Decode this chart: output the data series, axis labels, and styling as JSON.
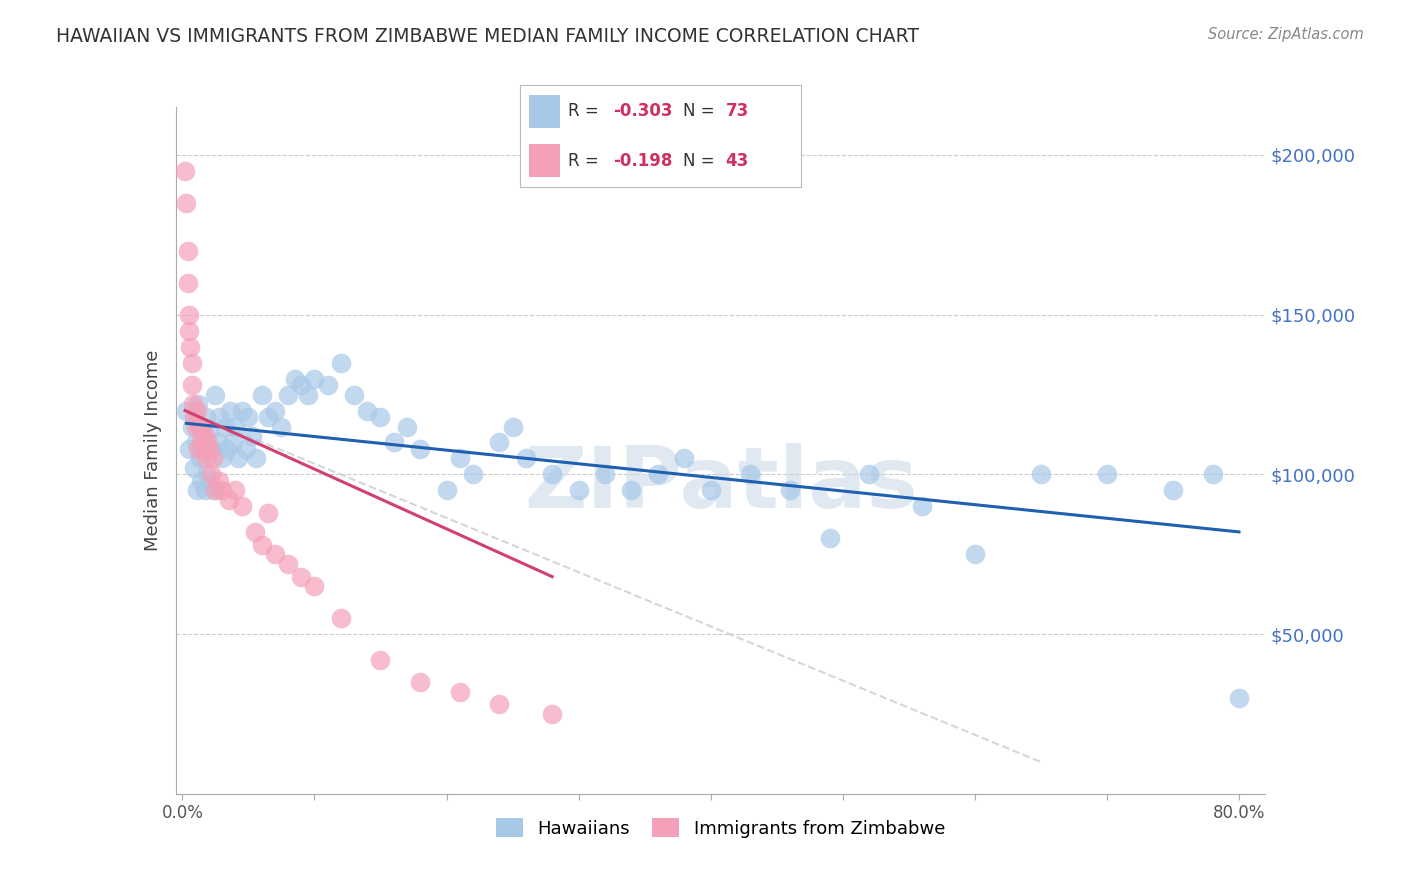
{
  "title": "HAWAIIAN VS IMMIGRANTS FROM ZIMBABWE MEDIAN FAMILY INCOME CORRELATION CHART",
  "source": "Source: ZipAtlas.com",
  "ylabel": "Median Family Income",
  "yticks": [
    0,
    50000,
    100000,
    150000,
    200000
  ],
  "ytick_labels": [
    "",
    "$50,000",
    "$100,000",
    "$150,000",
    "$200,000"
  ],
  "ymin": 0,
  "ymax": 215000,
  "xmin": -0.005,
  "xmax": 0.82,
  "hawaiians_color": "#a8c8e8",
  "zimbabwe_color": "#f4a0b8",
  "trend_hawaiians_color": "#2060b0",
  "trend_zimbabwe_color": "#d04070",
  "watermark": "ZIPatlas",
  "hawaiians_x": [
    0.003,
    0.005,
    0.007,
    0.009,
    0.01,
    0.011,
    0.012,
    0.013,
    0.014,
    0.015,
    0.016,
    0.017,
    0.018,
    0.019,
    0.02,
    0.022,
    0.024,
    0.025,
    0.027,
    0.028,
    0.03,
    0.032,
    0.034,
    0.036,
    0.038,
    0.04,
    0.042,
    0.045,
    0.048,
    0.05,
    0.053,
    0.056,
    0.06,
    0.065,
    0.07,
    0.075,
    0.08,
    0.085,
    0.09,
    0.095,
    0.1,
    0.11,
    0.12,
    0.13,
    0.14,
    0.15,
    0.16,
    0.17,
    0.18,
    0.2,
    0.21,
    0.22,
    0.24,
    0.25,
    0.26,
    0.28,
    0.3,
    0.32,
    0.34,
    0.36,
    0.38,
    0.4,
    0.43,
    0.46,
    0.49,
    0.52,
    0.56,
    0.6,
    0.65,
    0.7,
    0.75,
    0.78,
    0.8
  ],
  "hawaiians_y": [
    120000,
    108000,
    115000,
    102000,
    110000,
    95000,
    122000,
    105000,
    98000,
    112000,
    108000,
    95000,
    118000,
    100000,
    113000,
    108000,
    95000,
    125000,
    110000,
    118000,
    105000,
    115000,
    108000,
    120000,
    110000,
    115000,
    105000,
    120000,
    108000,
    118000,
    112000,
    105000,
    125000,
    118000,
    120000,
    115000,
    125000,
    130000,
    128000,
    125000,
    130000,
    128000,
    135000,
    125000,
    120000,
    118000,
    110000,
    115000,
    108000,
    95000,
    105000,
    100000,
    110000,
    115000,
    105000,
    100000,
    95000,
    100000,
    95000,
    100000,
    105000,
    95000,
    100000,
    95000,
    80000,
    100000,
    90000,
    75000,
    100000,
    100000,
    95000,
    100000,
    30000
  ],
  "zimbabwe_x": [
    0.002,
    0.003,
    0.004,
    0.004,
    0.005,
    0.005,
    0.006,
    0.007,
    0.007,
    0.008,
    0.009,
    0.01,
    0.011,
    0.012,
    0.013,
    0.014,
    0.015,
    0.016,
    0.017,
    0.018,
    0.019,
    0.02,
    0.022,
    0.023,
    0.025,
    0.028,
    0.03,
    0.035,
    0.04,
    0.045,
    0.055,
    0.06,
    0.065,
    0.07,
    0.08,
    0.09,
    0.1,
    0.12,
    0.15,
    0.18,
    0.21,
    0.24,
    0.28
  ],
  "zimbabwe_y": [
    195000,
    185000,
    170000,
    160000,
    150000,
    145000,
    140000,
    135000,
    128000,
    122000,
    118000,
    115000,
    120000,
    108000,
    115000,
    110000,
    115000,
    108000,
    112000,
    105000,
    110000,
    108000,
    100000,
    105000,
    95000,
    98000,
    95000,
    92000,
    95000,
    90000,
    82000,
    78000,
    88000,
    75000,
    72000,
    68000,
    65000,
    55000,
    42000,
    35000,
    32000,
    28000,
    25000
  ],
  "h_trend_x0": 0.003,
  "h_trend_x1": 0.8,
  "h_trend_y0": 116000,
  "h_trend_y1": 82000,
  "z_trend_solid_x0": 0.002,
  "z_trend_solid_x1": 0.28,
  "z_trend_solid_y0": 120000,
  "z_trend_solid_y1": 68000,
  "z_trend_dash_x0": 0.002,
  "z_trend_dash_x1": 0.65,
  "z_trend_dash_y0": 120000,
  "z_trend_dash_y1": 10000
}
